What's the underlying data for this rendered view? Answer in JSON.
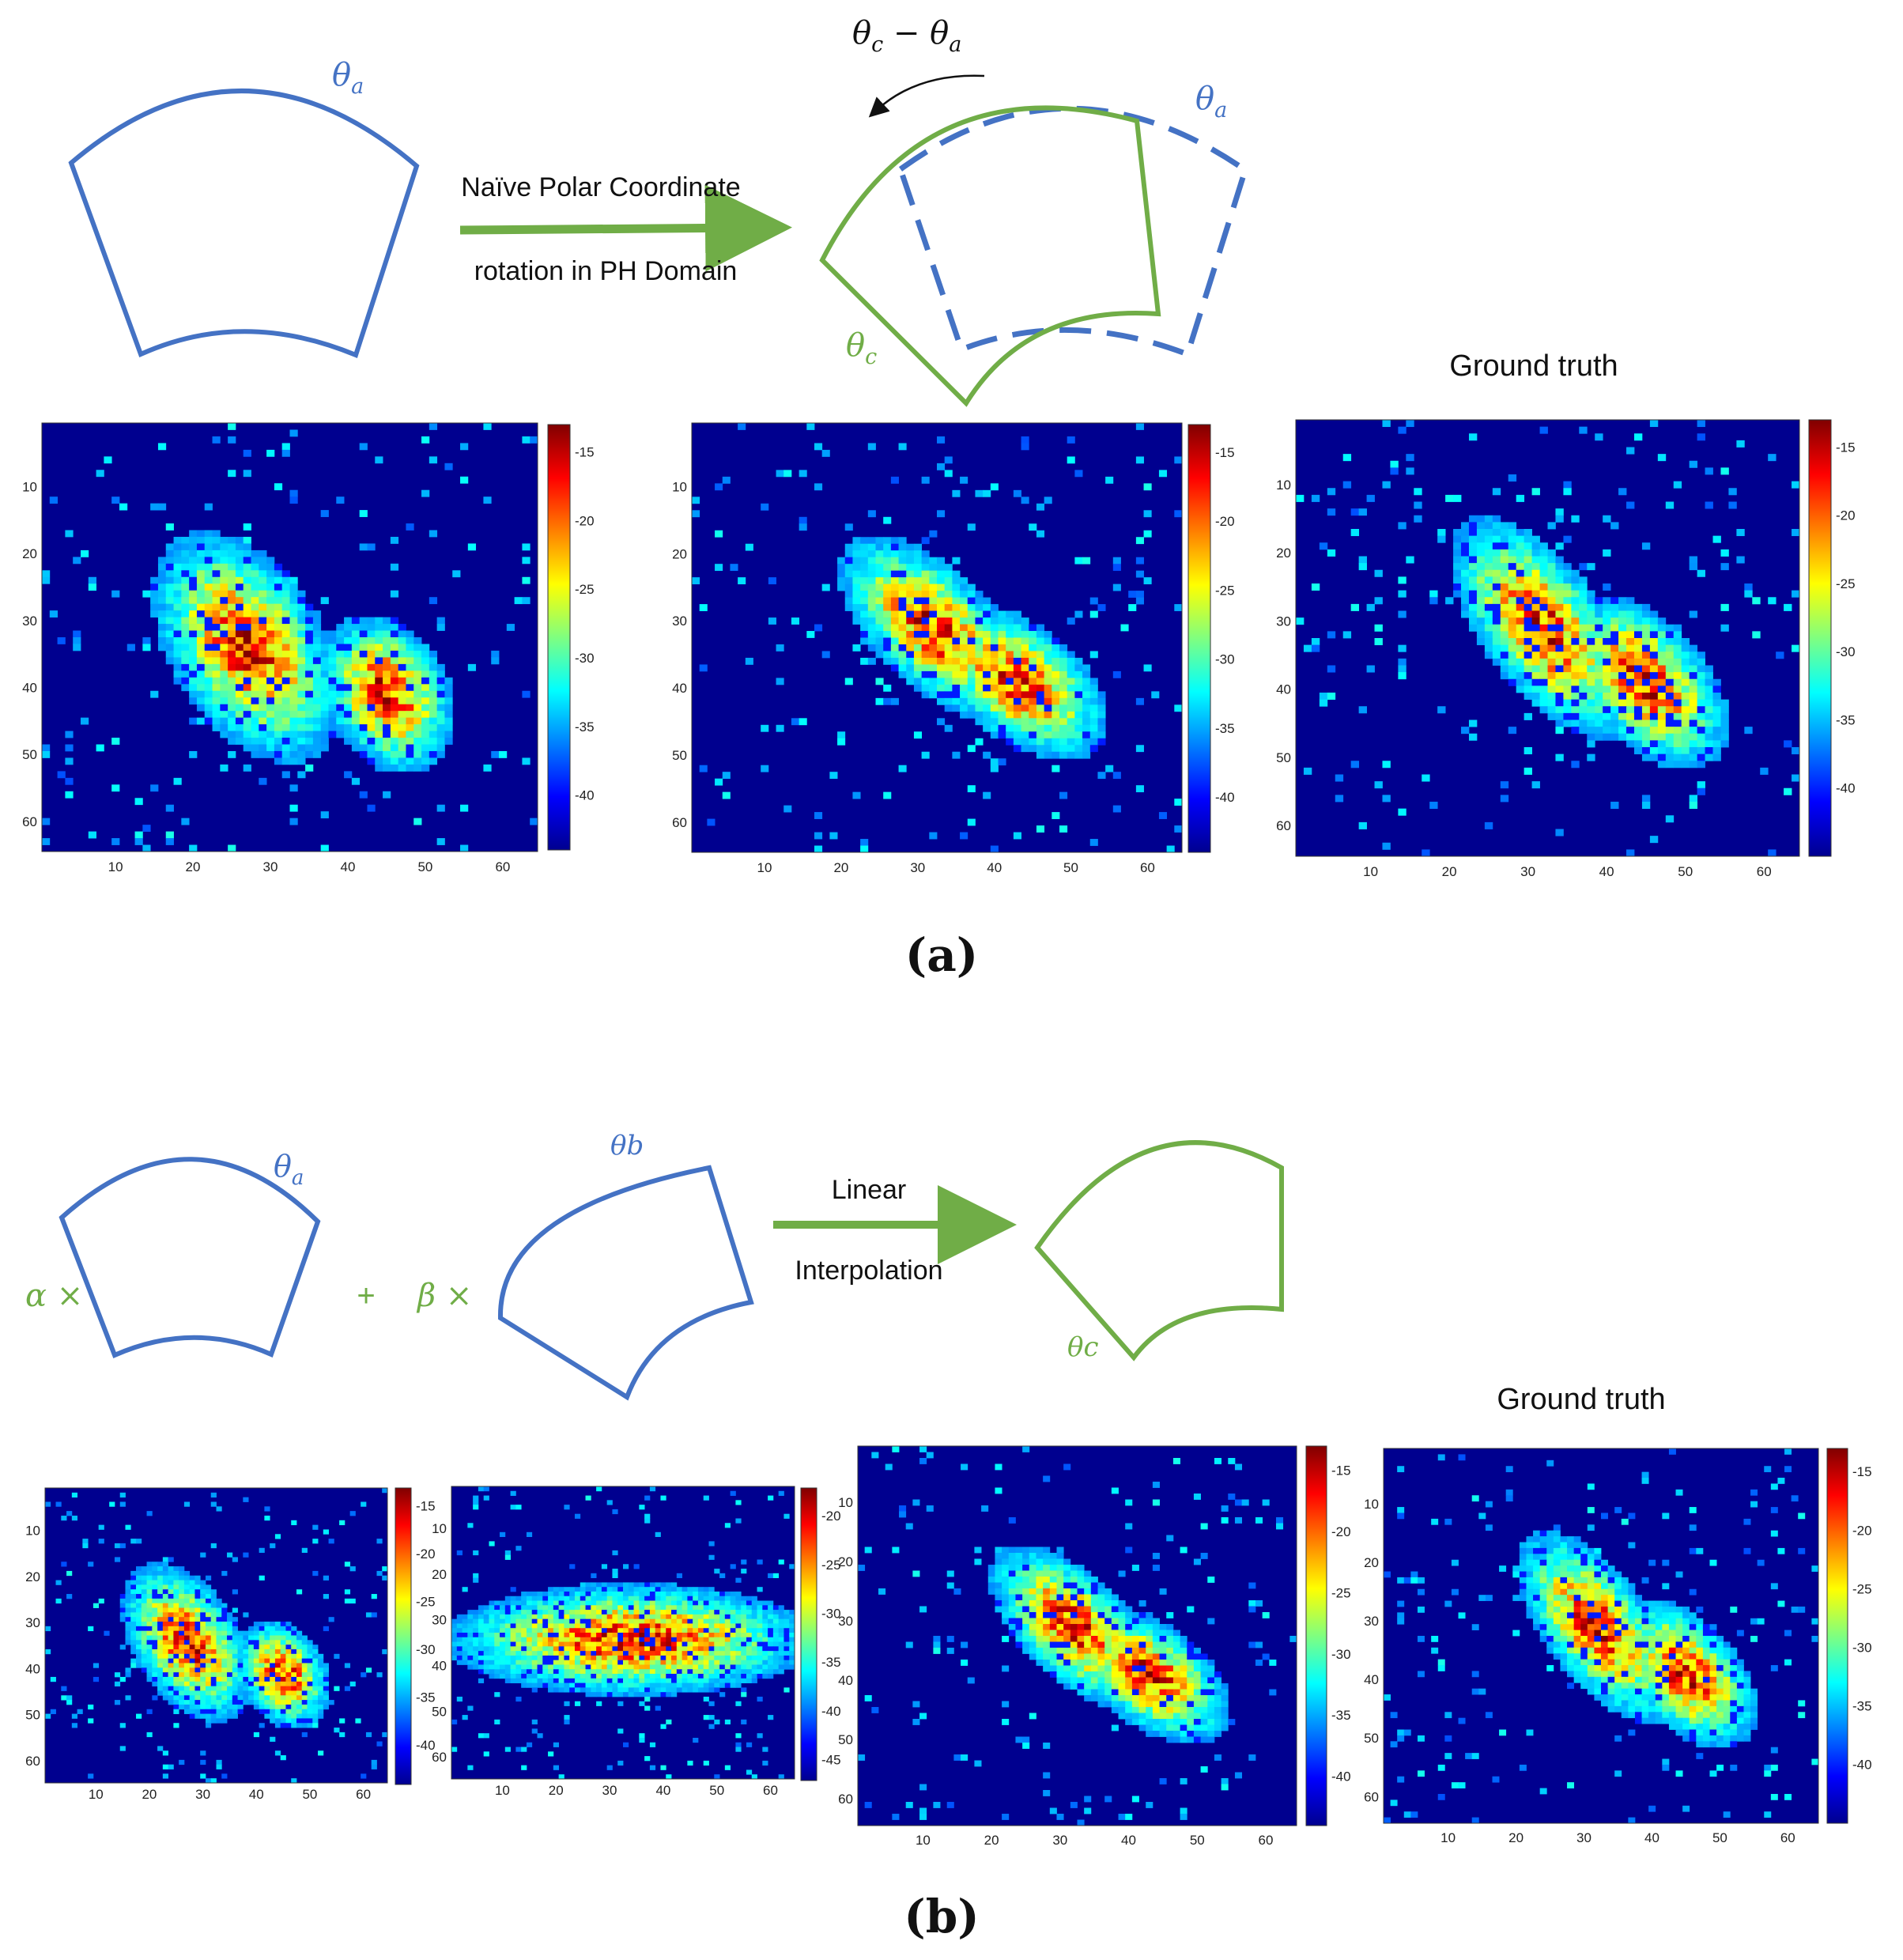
{
  "colors": {
    "blue": "#4472c4",
    "green": "#70ad47",
    "hm_bg": "#00008f",
    "text": "#111111"
  },
  "panel_a": {
    "caption": "(a)",
    "arrow_top_label": "Naïve Polar Coordinate",
    "arrow_bottom_label": "rotation in PH Domain",
    "theta_a": "θ",
    "theta_a_sub": "a",
    "theta_a_dashed": "θ",
    "theta_a_dashed_sub": "a",
    "theta_c": "θ",
    "theta_c_sub": "c",
    "rot_label_1": "θ",
    "rot_label_1_sub": "c",
    "rot_label_minus": " − ",
    "rot_label_2": "θ",
    "rot_label_2_sub": "a",
    "ground_truth": "Ground truth"
  },
  "panel_b": {
    "caption": "(b)",
    "alpha": "α ×",
    "plus": "+",
    "beta": "β ×",
    "arrow_top_label": "Linear",
    "arrow_bottom_label": "Interpolation",
    "theta_a": "θ",
    "theta_a_sub": "a",
    "theta_b": "θb",
    "theta_c": "θc",
    "ground_truth": "Ground truth"
  },
  "heatmaps": [
    {
      "id": "a1",
      "axis_ticks": [
        "10",
        "20",
        "30",
        "40",
        "50",
        "60"
      ],
      "colorbar_ticks": [
        "-15",
        "-20",
        "-25",
        "-30",
        "-35",
        "-40"
      ],
      "clim": [
        -44,
        -13
      ],
      "blob": "a"
    },
    {
      "id": "a2",
      "axis_ticks": [
        "10",
        "20",
        "30",
        "40",
        "50",
        "60"
      ],
      "colorbar_ticks": [
        "-15",
        "-20",
        "-25",
        "-30",
        "-35",
        "-40"
      ],
      "clim": [
        -44,
        -13
      ],
      "blob": "c"
    },
    {
      "id": "a3",
      "axis_ticks": [
        "10",
        "20",
        "30",
        "40",
        "50",
        "60"
      ],
      "colorbar_ticks": [
        "-15",
        "-20",
        "-25",
        "-30",
        "-35",
        "-40"
      ],
      "clim": [
        -45,
        -13
      ],
      "blob": "gt"
    },
    {
      "id": "b1",
      "axis_ticks": [
        "10",
        "20",
        "30",
        "40",
        "50",
        "60"
      ],
      "colorbar_ticks": [
        "-15",
        "-20",
        "-25",
        "-30",
        "-35",
        "-40"
      ],
      "clim": [
        -44,
        -13
      ],
      "blob": "a"
    },
    {
      "id": "b2",
      "axis_ticks": [
        "10",
        "20",
        "30",
        "40",
        "50",
        "60"
      ],
      "colorbar_ticks": [
        "-20",
        "-25",
        "-30",
        "-35",
        "-40",
        "-45"
      ],
      "clim": [
        -47,
        -17
      ],
      "blob": "b"
    },
    {
      "id": "b3",
      "axis_ticks": [
        "10",
        "20",
        "30",
        "40",
        "50",
        "60"
      ],
      "colorbar_ticks": [
        "-15",
        "-20",
        "-25",
        "-30",
        "-35",
        "-40"
      ],
      "clim": [
        -44,
        -13
      ],
      "blob": "c"
    },
    {
      "id": "b4",
      "axis_ticks": [
        "10",
        "20",
        "30",
        "40",
        "50",
        "60"
      ],
      "colorbar_ticks": [
        "-15",
        "-20",
        "-25",
        "-30",
        "-35",
        "-40"
      ],
      "clim": [
        -45,
        -13
      ],
      "blob": "gt"
    }
  ]
}
